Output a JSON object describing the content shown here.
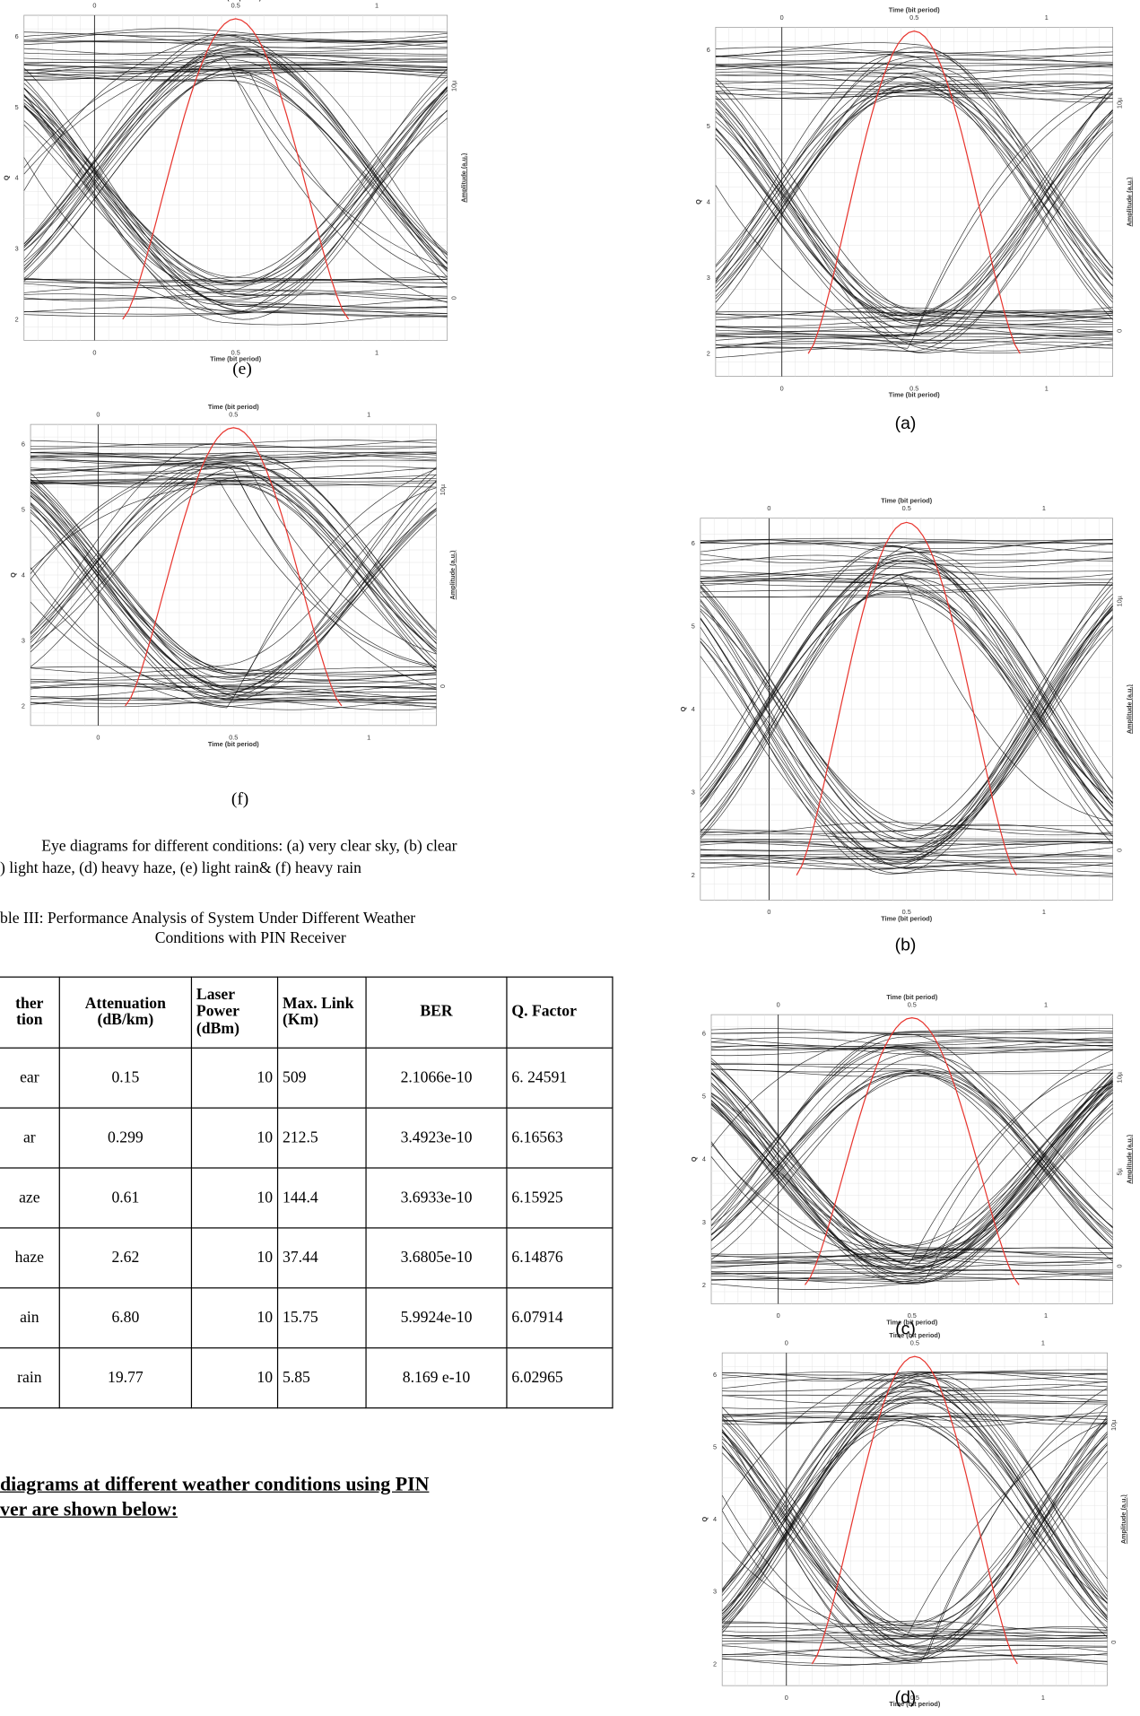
{
  "panels": [
    {
      "caption": "(e)",
      "x_title": "Time (bit period)",
      "x_ticks": [
        "0",
        "0.5",
        "1"
      ],
      "y_label": "Q",
      "y_ticks": [
        "2",
        "3",
        "4",
        "5",
        "6"
      ],
      "amp_label": "Amplitude (a.u.)",
      "amp_ticks": [
        "0",
        "10µ"
      ]
    },
    {
      "caption": "(f)",
      "x_title": "Time (bit period)",
      "x_ticks": [
        "0",
        "0.5",
        "1"
      ],
      "y_label": "Q",
      "y_ticks": [
        "2",
        "3",
        "4",
        "5",
        "6"
      ],
      "amp_label": "Amplitude (a.u.)",
      "amp_ticks": [
        "0",
        "10µ"
      ]
    },
    {
      "caption": "(a)",
      "x_title": "Time (bit period)",
      "x_ticks": [
        "0",
        "0.5",
        "1"
      ],
      "y_label": "Q",
      "y_ticks": [
        "2",
        "3",
        "4",
        "5",
        "6"
      ],
      "amp_label": "Amplitude (a.u.)",
      "amp_ticks": [
        "0",
        "10µ"
      ]
    },
    {
      "caption": "(b)",
      "x_title": "Time (bit period)",
      "x_ticks": [
        "0",
        "0.5",
        "1"
      ],
      "y_label": "Q",
      "y_ticks": [
        "2",
        "3",
        "4",
        "5",
        "6"
      ],
      "amp_label": "Amplitude (a.u.)",
      "amp_ticks": [
        "0",
        "10µ"
      ]
    },
    {
      "caption": "(c)",
      "x_title": "Time (bit period)",
      "x_ticks": [
        "0",
        "0.5",
        "1"
      ],
      "y_label": "Q",
      "y_ticks": [
        "2",
        "3",
        "4",
        "5",
        "6"
      ],
      "amp_label": "Amplitude (a.u.)",
      "amp_ticks": [
        "0",
        "5µ",
        "10µ"
      ]
    },
    {
      "caption": "(d)",
      "x_title": "Time (bit period)",
      "x_ticks": [
        "0",
        "0.5",
        "1"
      ],
      "y_label": "Q",
      "y_ticks": [
        "2",
        "3",
        "4",
        "5",
        "6"
      ],
      "amp_label": "Amplitude (a.u.)",
      "amp_ticks": [
        "0",
        "10µ"
      ]
    }
  ],
  "figure_caption": {
    "lines": [
      "Eye diagrams for different conditions: (a) very clear sky, (b) clear",
      ") light haze, (d) heavy haze, (e) light rain& (f) heavy rain"
    ]
  },
  "table": {
    "title": [
      "ble III: Performance Analysis of System Under Different Weather",
      "Conditions with PIN Receiver"
    ],
    "header": [
      "ther tion",
      "Attenuation (dB/km)",
      "Laser Power (dBm)",
      "Max. Link (Km)",
      "BER",
      "Q. Factor"
    ],
    "rows": [
      [
        "ear",
        "0.15",
        "10",
        "509",
        "2.1066e-10",
        "6. 24591"
      ],
      [
        "ar",
        "0.299",
        "10",
        "212.5",
        "3.4923e-10",
        "6.16563"
      ],
      [
        "aze",
        "0.61",
        "10",
        "144.4",
        "3.6933e-10",
        "6.15925"
      ],
      [
        "haze",
        "2.62",
        "10",
        "37.44",
        "3.6805e-10",
        "6.14876"
      ],
      [
        "ain",
        "6.80",
        "10",
        "15.75",
        "5.9924e-10",
        "6.07914"
      ],
      [
        "rain",
        "19.77",
        "10",
        "5.85",
        "8.169 e-10",
        "6.02965"
      ]
    ]
  },
  "heading": {
    "lines": [
      "diagrams at different  weather conditions using PIN",
      "ver are shown below:"
    ]
  }
}
